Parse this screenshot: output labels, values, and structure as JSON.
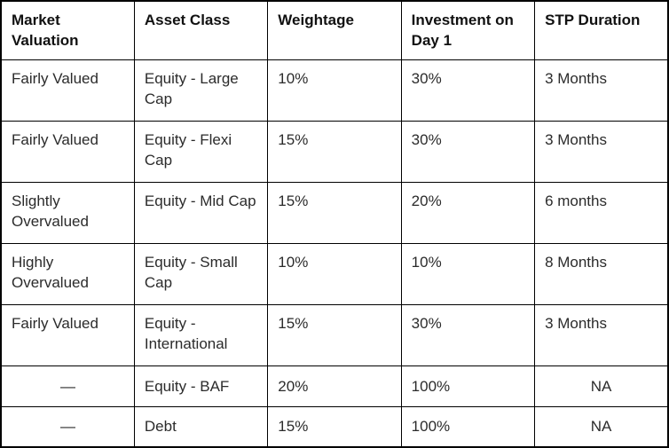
{
  "table": {
    "columns": [
      {
        "key": "market_valuation",
        "label": "Market Valuation"
      },
      {
        "key": "asset_class",
        "label": "Asset Class"
      },
      {
        "key": "weightage",
        "label": "Weightage"
      },
      {
        "key": "investment_day1",
        "label": "Investment on Day 1"
      },
      {
        "key": "stp_duration",
        "label": "STP Duration"
      }
    ],
    "rows": [
      {
        "market_valuation": "Fairly Valued",
        "asset_class": "Equity - Large Cap",
        "weightage": "10%",
        "investment_day1": "30%",
        "stp_duration": "3 Months",
        "compact": false,
        "centered_ends": false
      },
      {
        "market_valuation": "Fairly Valued",
        "asset_class": "Equity - Flexi Cap",
        "weightage": "15%",
        "investment_day1": "30%",
        "stp_duration": "3 Months",
        "compact": false,
        "centered_ends": false
      },
      {
        "market_valuation": "Slightly Overvalued",
        "asset_class": "Equity - Mid Cap",
        "weightage": "15%",
        "investment_day1": "20%",
        "stp_duration": "6 months",
        "compact": false,
        "centered_ends": false
      },
      {
        "market_valuation": "Highly Overvalued",
        "asset_class": "Equity - Small Cap",
        "weightage": "10%",
        "investment_day1": "10%",
        "stp_duration": "8 Months",
        "compact": false,
        "centered_ends": false
      },
      {
        "market_valuation": "Fairly Valued",
        "asset_class": "Equity - International",
        "weightage": "15%",
        "investment_day1": "30%",
        "stp_duration": "3 Months",
        "compact": false,
        "centered_ends": false
      },
      {
        "market_valuation": "—",
        "asset_class": "Equity - BAF",
        "weightage": "20%",
        "investment_day1": "100%",
        "stp_duration": "NA",
        "compact": true,
        "centered_ends": true
      },
      {
        "market_valuation": "—",
        "asset_class": "Debt",
        "weightage": "15%",
        "investment_day1": "100%",
        "stp_duration": "NA",
        "compact": true,
        "centered_ends": true
      }
    ],
    "colors": {
      "border": "#000000",
      "header_text": "#111111",
      "body_text": "#2b2b2b",
      "background": "#ffffff"
    }
  }
}
